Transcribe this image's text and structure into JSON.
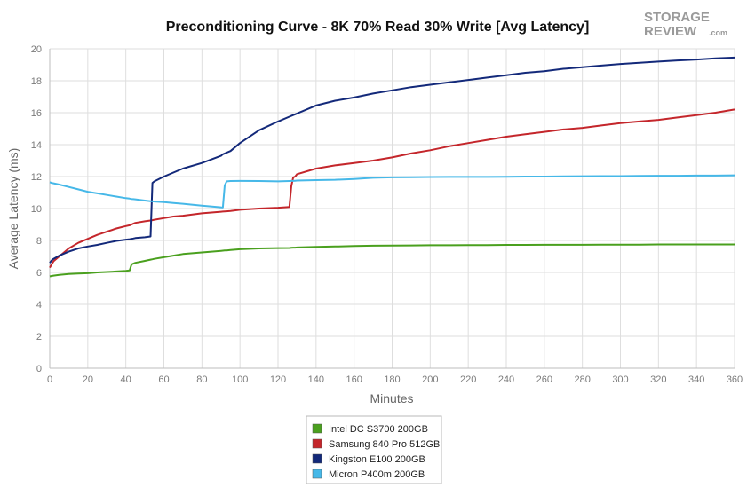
{
  "logo": {
    "line1": "STORAGE",
    "line2": "REVIEW",
    "suffix": ".com"
  },
  "chart_data": {
    "type": "line",
    "title": "Preconditioning Curve - 8K 70% Read 30% Write [Avg Latency]",
    "xlabel": "Minutes",
    "ylabel": "Average Latency (ms)",
    "xlim": [
      0,
      360
    ],
    "ylim": [
      0,
      20
    ],
    "xticks": [
      "0",
      "20",
      "40",
      "60",
      "80",
      "100",
      "120",
      "140",
      "160",
      "180",
      "200",
      "220",
      "240",
      "260",
      "280",
      "300",
      "320",
      "340",
      "360"
    ],
    "yticks": [
      "0",
      "2",
      "4",
      "6",
      "8",
      "10",
      "12",
      "14",
      "16",
      "18",
      "20"
    ],
    "grid": true,
    "legend_position": "bottom",
    "x": [
      0,
      1,
      2,
      5,
      10,
      15,
      20,
      25,
      30,
      35,
      40,
      42,
      43,
      44,
      45,
      50,
      53,
      54,
      55,
      60,
      65,
      70,
      80,
      90,
      91,
      92,
      93,
      95,
      100,
      110,
      120,
      126,
      127,
      128,
      129,
      130,
      140,
      150,
      160,
      170,
      180,
      190,
      200,
      210,
      220,
      230,
      240,
      250,
      260,
      270,
      280,
      290,
      300,
      310,
      320,
      330,
      340,
      350,
      360
    ],
    "series": [
      {
        "name": "Intel DC S3700 200GB",
        "color": "#4aa01e",
        "values": [
          5.75,
          5.78,
          5.8,
          5.85,
          5.9,
          5.93,
          5.95,
          6.0,
          6.03,
          6.06,
          6.1,
          6.12,
          6.5,
          6.55,
          6.6,
          6.72,
          6.8,
          6.82,
          6.85,
          6.95,
          7.05,
          7.15,
          7.25,
          7.35,
          7.36,
          7.37,
          7.38,
          7.4,
          7.45,
          7.5,
          7.52,
          7.53,
          7.54,
          7.55,
          7.55,
          7.56,
          7.6,
          7.62,
          7.65,
          7.67,
          7.68,
          7.69,
          7.7,
          7.7,
          7.71,
          7.71,
          7.72,
          7.72,
          7.73,
          7.73,
          7.73,
          7.74,
          7.74,
          7.74,
          7.75,
          7.75,
          7.75,
          7.75,
          7.75
        ]
      },
      {
        "name": "Samsung 840 Pro 512GB",
        "color": "#c4262b",
        "values": [
          6.3,
          6.5,
          6.7,
          7.0,
          7.5,
          7.85,
          8.1,
          8.35,
          8.55,
          8.75,
          8.9,
          8.95,
          9.0,
          9.05,
          9.1,
          9.2,
          9.25,
          9.27,
          9.3,
          9.4,
          9.5,
          9.55,
          9.7,
          9.8,
          9.81,
          9.82,
          9.83,
          9.85,
          9.92,
          10.0,
          10.05,
          10.1,
          11.4,
          11.95,
          12.0,
          12.15,
          12.5,
          12.7,
          12.85,
          13.0,
          13.2,
          13.45,
          13.65,
          13.9,
          14.1,
          14.3,
          14.5,
          14.65,
          14.8,
          14.95,
          15.05,
          15.2,
          15.35,
          15.45,
          15.55,
          15.7,
          15.85,
          16.0,
          16.2
        ]
      },
      {
        "name": "Kingston E100 200GB",
        "color": "#13297a",
        "values": [
          6.6,
          6.75,
          6.85,
          7.05,
          7.3,
          7.5,
          7.62,
          7.72,
          7.85,
          7.97,
          8.05,
          8.08,
          8.1,
          8.12,
          8.15,
          8.2,
          8.25,
          11.6,
          11.7,
          12.0,
          12.25,
          12.5,
          12.85,
          13.3,
          13.4,
          13.45,
          13.5,
          13.6,
          14.1,
          14.9,
          15.45,
          15.75,
          15.8,
          15.85,
          15.9,
          15.95,
          16.45,
          16.75,
          16.95,
          17.2,
          17.4,
          17.6,
          17.75,
          17.9,
          18.05,
          18.2,
          18.35,
          18.5,
          18.6,
          18.75,
          18.85,
          18.95,
          19.05,
          19.12,
          19.2,
          19.27,
          19.33,
          19.4,
          19.45
        ]
      },
      {
        "name": "Micron P400m 200GB",
        "color": "#46b8e8",
        "values": [
          11.65,
          11.6,
          11.58,
          11.5,
          11.35,
          11.2,
          11.05,
          10.95,
          10.85,
          10.75,
          10.65,
          10.62,
          10.6,
          10.59,
          10.58,
          10.5,
          10.46,
          10.45,
          10.44,
          10.4,
          10.35,
          10.3,
          10.18,
          10.08,
          10.07,
          11.45,
          11.7,
          11.72,
          11.73,
          11.72,
          11.7,
          11.72,
          11.73,
          11.73,
          11.74,
          11.75,
          11.78,
          11.8,
          11.85,
          11.92,
          11.95,
          11.96,
          11.97,
          11.98,
          11.98,
          11.98,
          11.99,
          12.0,
          12.0,
          12.01,
          12.02,
          12.03,
          12.03,
          12.04,
          12.05,
          12.05,
          12.06,
          12.06,
          12.08
        ]
      }
    ]
  }
}
